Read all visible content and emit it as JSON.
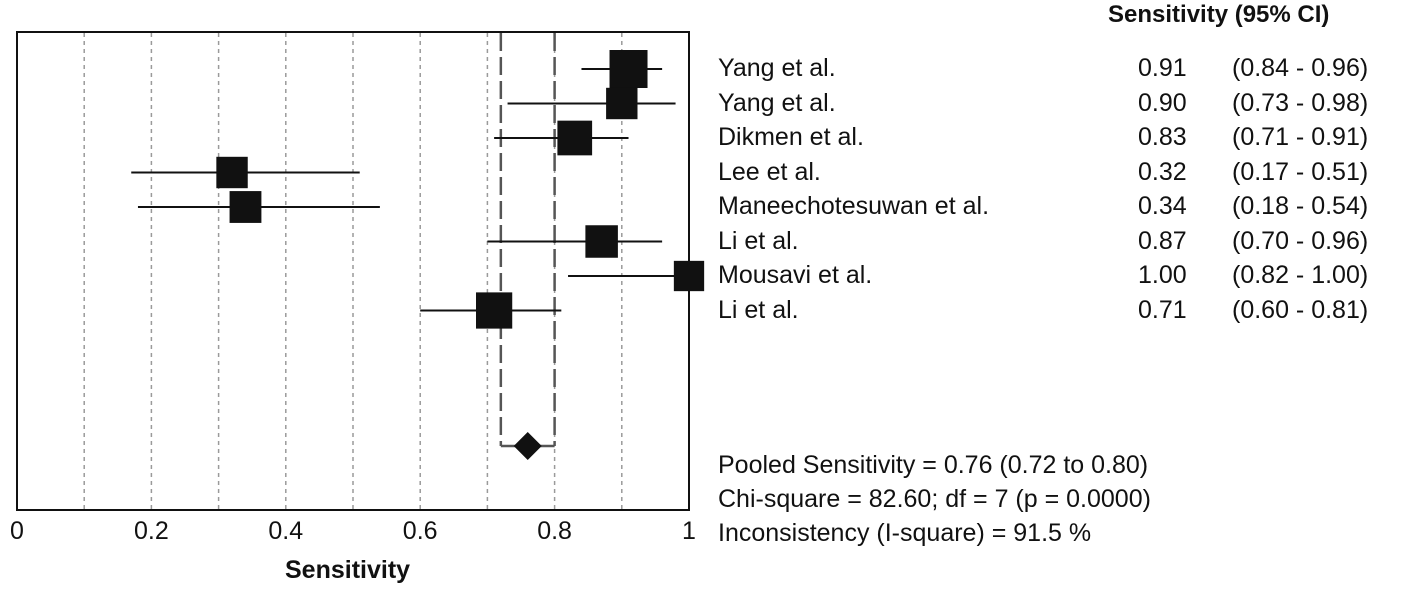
{
  "chart_data": {
    "type": "forest",
    "xlabel": "Sensitivity",
    "xlim": [
      0,
      1
    ],
    "xticks": [
      0,
      0.2,
      0.4,
      0.6,
      0.8,
      1
    ],
    "xtick_labels": [
      "0",
      "0.2",
      "0.4",
      "0.6",
      "0.8",
      "1"
    ],
    "grid_x": [
      0.1,
      0.2,
      0.3,
      0.4,
      0.5,
      0.6,
      0.7,
      0.8,
      0.9
    ],
    "column_header": "Sensitivity (95% CI)",
    "studies": [
      {
        "name": "Yang et al.",
        "value": 0.91,
        "lower": 0.84,
        "upper": 0.96,
        "value_label": "0.91",
        "ci_label": "(0.84 - 0.96)",
        "weight": 1.0
      },
      {
        "name": "Yang et al.",
        "value": 0.9,
        "lower": 0.73,
        "upper": 0.98,
        "value_label": "0.90",
        "ci_label": "(0.73 - 0.98)",
        "weight": 0.7
      },
      {
        "name": "Dikmen et al.",
        "value": 0.83,
        "lower": 0.71,
        "upper": 0.91,
        "value_label": "0.83",
        "ci_label": "(0.71 - 0.91)",
        "weight": 0.85
      },
      {
        "name": "Lee et al.",
        "value": 0.32,
        "lower": 0.17,
        "upper": 0.51,
        "value_label": "0.32",
        "ci_label": "(0.17 - 0.51)",
        "weight": 0.7
      },
      {
        "name": "Maneechotesuwan et al.",
        "value": 0.34,
        "lower": 0.18,
        "upper": 0.54,
        "value_label": "0.34",
        "ci_label": "(0.18 - 0.54)",
        "weight": 0.72
      },
      {
        "name": "Li et al.",
        "value": 0.87,
        "lower": 0.7,
        "upper": 0.96,
        "value_label": "0.87",
        "ci_label": "(0.70 - 0.96)",
        "weight": 0.75
      },
      {
        "name": "Mousavi et al.",
        "value": 1.0,
        "lower": 0.82,
        "upper": 1.0,
        "value_label": "1.00",
        "ci_label": "(0.82 - 1.00)",
        "weight": 0.65
      },
      {
        "name": "Li et al.",
        "value": 0.71,
        "lower": 0.6,
        "upper": 0.81,
        "value_label": "0.71",
        "ci_label": "(0.60 - 0.81)",
        "weight": 0.92
      }
    ],
    "pooled": {
      "value": 0.76,
      "lower": 0.72,
      "upper": 0.8
    },
    "summary_lines": [
      "Pooled Sensitivity = 0.76 (0.72 to 0.80)",
      "Chi-square = 82.60; df =  7 (p = 0.0000)",
      "Inconsistency (I-square) = 91.5 %"
    ]
  }
}
